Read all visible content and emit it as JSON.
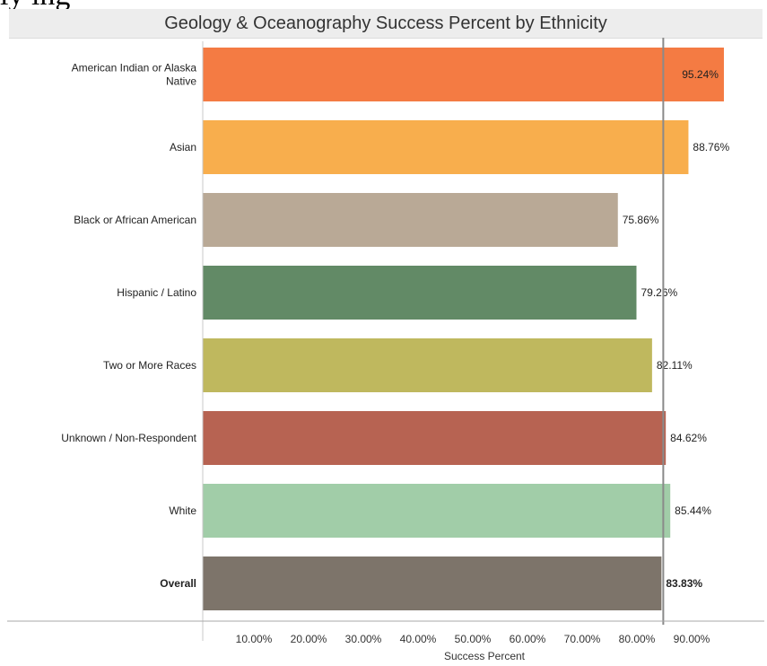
{
  "header": {
    "top_cut_text": "ly                                                              ing"
  },
  "chart_data": {
    "type": "bar",
    "orientation": "horizontal",
    "title": "Geology & Oceanography Success Percent by Ethnicity",
    "xlabel": "Success Percent",
    "ylabel": "",
    "xlim": [
      0,
      100
    ],
    "x_ticks": [
      10,
      20,
      30,
      40,
      50,
      60,
      70,
      80,
      90
    ],
    "x_tick_labels": [
      "10.00%",
      "20.00%",
      "30.00%",
      "40.00%",
      "50.00%",
      "60.00%",
      "70.00%",
      "80.00%",
      "90.00%"
    ],
    "reference_line": 83.83,
    "categories": [
      {
        "label": "American Indian or Alaska Native",
        "value": 95.24,
        "value_label": "95.24%",
        "color": "#f47b43",
        "bold": false
      },
      {
        "label": "Asian",
        "value": 88.76,
        "value_label": "88.76%",
        "color": "#f8ae4d",
        "bold": false
      },
      {
        "label": "Black or African American",
        "value": 75.86,
        "value_label": "75.86%",
        "color": "#b9a996",
        "bold": false
      },
      {
        "label": "Hispanic / Latino",
        "value": 79.26,
        "value_label": "79.26%",
        "color": "#628a66",
        "bold": false
      },
      {
        "label": "Two or More Races",
        "value": 82.11,
        "value_label": "82.11%",
        "color": "#bfb85e",
        "bold": false
      },
      {
        "label": "Unknown / Non-Respondent",
        "value": 84.62,
        "value_label": "84.62%",
        "color": "#b76352",
        "bold": false
      },
      {
        "label": "White",
        "value": 85.44,
        "value_label": "85.44%",
        "color": "#a1cda8",
        "bold": false
      },
      {
        "label": "Overall",
        "value": 83.83,
        "value_label": "83.83%",
        "color": "#7d746a",
        "bold": true
      }
    ]
  }
}
